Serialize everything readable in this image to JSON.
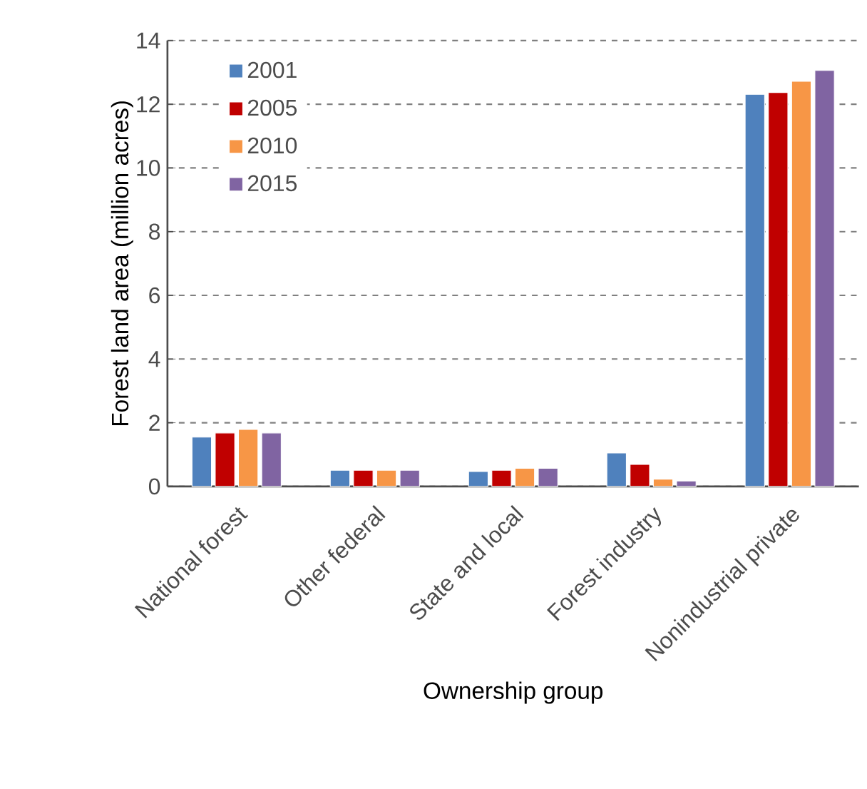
{
  "chart_data": {
    "type": "bar",
    "xlabel": "Ownership group",
    "ylabel": "Forest  land area  (million acres)",
    "categories": [
      "National forest",
      "Other federal",
      "State and local",
      "Forest industry",
      "Nonindustrial private"
    ],
    "series": [
      {
        "name": "2001",
        "color": "#4f81bd",
        "values": [
          1.55,
          0.51,
          0.47,
          1.05,
          12.31
        ]
      },
      {
        "name": "2005",
        "color": "#c00000",
        "values": [
          1.68,
          0.51,
          0.51,
          0.69,
          12.37
        ]
      },
      {
        "name": "2010",
        "color": "#f79646",
        "values": [
          1.79,
          0.51,
          0.57,
          0.23,
          12.72
        ]
      },
      {
        "name": "2015",
        "color": "#8064a2",
        "values": [
          1.68,
          0.51,
          0.57,
          0.17,
          13.06
        ]
      }
    ],
    "ylim": [
      0,
      14
    ],
    "yticks": [
      0,
      2,
      4,
      6,
      8,
      10,
      12,
      14
    ],
    "grid": "y",
    "legend": "top left"
  }
}
